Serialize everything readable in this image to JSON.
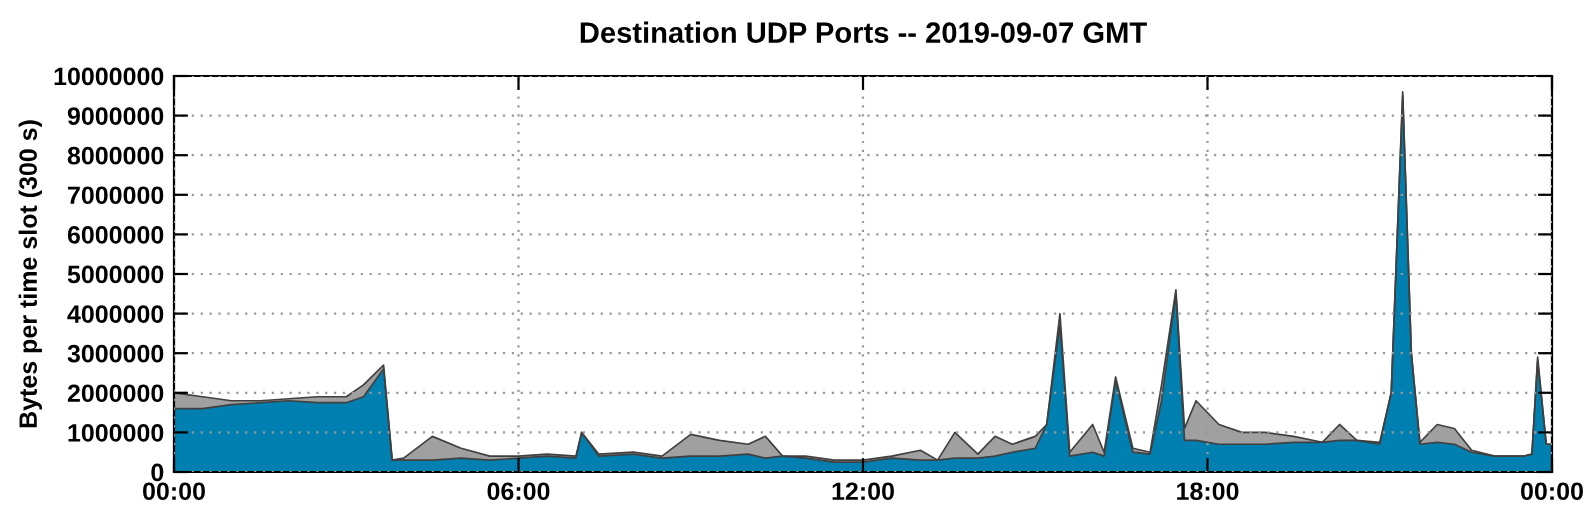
{
  "chart_data": {
    "type": "area",
    "stacked": true,
    "title": "Destination UDP Ports -- 2019-09-07 GMT",
    "ylabel": "Bytes per time slot (300 s)",
    "x": [
      0,
      0.5,
      1,
      1.5,
      2,
      2.5,
      3,
      3.3,
      3.65,
      3.8,
      4,
      4.5,
      5,
      5.5,
      6,
      6.5,
      7,
      7.1,
      7.4,
      8,
      8.5,
      9,
      9.5,
      10,
      10.3,
      10.6,
      11,
      11.5,
      12,
      12.5,
      13,
      13.3,
      13.6,
      14,
      14.3,
      14.6,
      15,
      15.2,
      15.43,
      15.6,
      16,
      16.2,
      16.4,
      16.7,
      17,
      17.2,
      17.45,
      17.6,
      17.8,
      18.2,
      18.6,
      19,
      19.5,
      20,
      20.3,
      20.6,
      21,
      21.2,
      21.4,
      21.55,
      21.7,
      22,
      22.3,
      22.6,
      23,
      23.5,
      23.65,
      23.75,
      23.9,
      24
    ],
    "series": [
      {
        "color": "#0080b0",
        "values": [
          1600000,
          1600000,
          1700000,
          1750000,
          1800000,
          1750000,
          1750000,
          1900000,
          2600000,
          300000,
          300000,
          300000,
          350000,
          300000,
          350000,
          400000,
          350000,
          1000000,
          400000,
          450000,
          350000,
          400000,
          400000,
          450000,
          350000,
          400000,
          350000,
          250000,
          250000,
          350000,
          300000,
          300000,
          350000,
          350000,
          400000,
          500000,
          600000,
          1200000,
          3700000,
          400000,
          500000,
          400000,
          2300000,
          500000,
          450000,
          1800000,
          4500000,
          800000,
          800000,
          700000,
          700000,
          700000,
          750000,
          750000,
          800000,
          800000,
          700000,
          2000000,
          9500000,
          3000000,
          700000,
          750000,
          700000,
          500000,
          400000,
          400000,
          450000,
          2800000,
          700000,
          700000
        ]
      },
      {
        "color": "#a0a0a0",
        "values": [
          400000,
          300000,
          100000,
          50000,
          50000,
          150000,
          150000,
          300000,
          100000,
          0,
          50000,
          600000,
          250000,
          100000,
          50000,
          50000,
          50000,
          0,
          50000,
          50000,
          50000,
          550000,
          400000,
          250000,
          550000,
          0,
          50000,
          50000,
          50000,
          50000,
          250000,
          0,
          650000,
          100000,
          500000,
          200000,
          300000,
          0,
          300000,
          100000,
          700000,
          100000,
          100000,
          100000,
          50000,
          400000,
          100000,
          300000,
          1000000,
          500000,
          300000,
          300000,
          150000,
          0,
          400000,
          0,
          50000,
          0,
          100000,
          0,
          50000,
          450000,
          400000,
          50000,
          0,
          0,
          0,
          100000,
          0,
          0
        ]
      }
    ],
    "xlim": [
      0,
      24
    ],
    "xticks": [
      {
        "value": 0,
        "label": "00:00"
      },
      {
        "value": 6,
        "label": "06:00"
      },
      {
        "value": 12,
        "label": "12:00"
      },
      {
        "value": 18,
        "label": "18:00"
      },
      {
        "value": 24,
        "label": "00:00"
      }
    ],
    "ylim": [
      0,
      10000000
    ],
    "yticks": [
      0,
      1000000,
      2000000,
      3000000,
      4000000,
      5000000,
      6000000,
      7000000,
      8000000,
      9000000,
      10000000
    ],
    "grid": true,
    "legend": false
  }
}
